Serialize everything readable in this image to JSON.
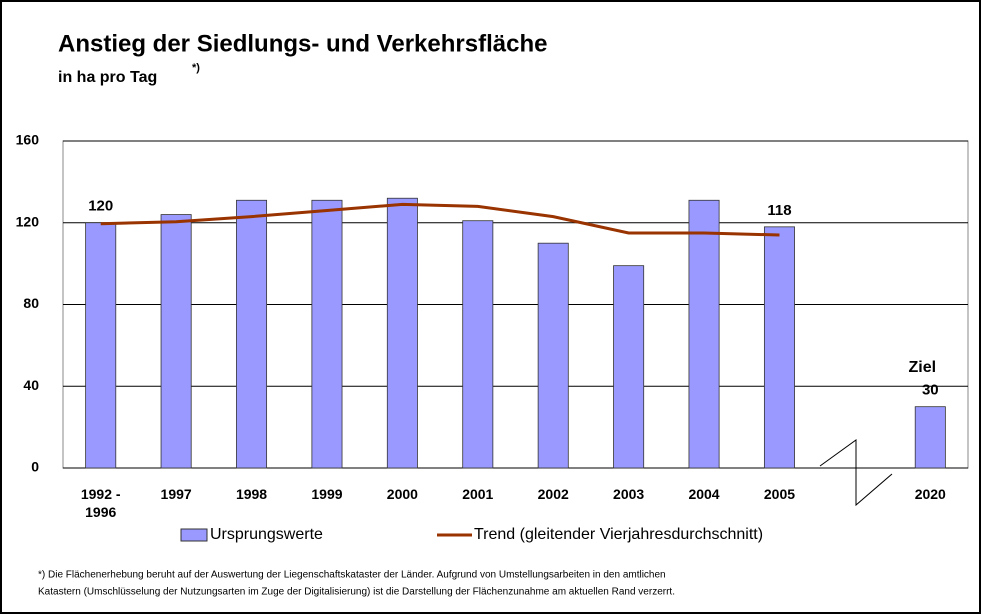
{
  "chart_data": {
    "type": "bar",
    "title": "Anstieg der Siedlungs- und Verkehrsfläche",
    "subtitle": "in ha pro Tag",
    "subtitle_note": "*)",
    "categories": [
      "1992 - 1996",
      "1997",
      "1998",
      "1999",
      "2000",
      "2001",
      "2002",
      "2003",
      "2004",
      "2005",
      null,
      "2020"
    ],
    "series": [
      {
        "name": "Ursprungswerte",
        "type": "bar",
        "color": "#9999ff",
        "values": [
          120,
          124,
          131,
          131,
          132,
          121,
          110,
          99,
          131,
          118,
          null,
          30
        ],
        "value_labels": [
          "120",
          null,
          null,
          null,
          null,
          null,
          null,
          null,
          null,
          "118",
          null,
          "30"
        ]
      },
      {
        "name": "Trend (gleitender Vierjahresdurchschnitt)",
        "type": "line",
        "color": "#993300",
        "values": [
          119.5,
          120.5,
          123,
          126,
          129,
          128,
          123,
          115,
          115,
          114,
          null,
          null
        ]
      }
    ],
    "annotations": [
      "Ziel"
    ],
    "ylim": [
      0,
      160
    ],
    "yticks": [
      0,
      40,
      80,
      120,
      160
    ],
    "grid": true,
    "footnote": [
      "*) Die Flächenerhebung beruht auf der Auswertung der Liegenschaftskataster der Länder. Aufgrund von Umstellungsarbeiten in den amtlichen",
      "Katastern (Umschlüsselung der Nutzungsarten im Zuge der Digitalisierung) ist die Darstellung der Flächenzunahme am aktuellen Rand verzerrt."
    ]
  }
}
